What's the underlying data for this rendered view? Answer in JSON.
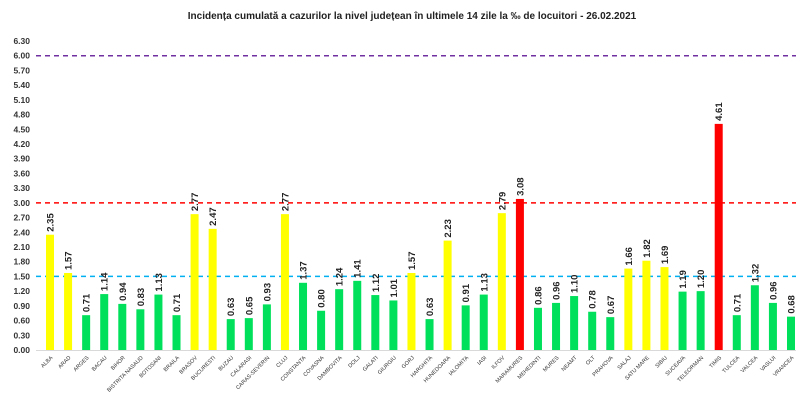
{
  "chart_data": {
    "type": "bar",
    "title": "Incidența cumulată a cazurilor la nivel județean în ultimele 14 zile   la ‰ de locuitori  - 26.02.2021",
    "xlabel": "",
    "ylabel": "",
    "ylim": [
      0,
      6.3
    ],
    "yticks": [
      "0.00",
      "0.30",
      "0.60",
      "0.90",
      "1.20",
      "1.50",
      "1.80",
      "2.10",
      "2.40",
      "2.70",
      "3.00",
      "3.30",
      "3.60",
      "3.90",
      "4.20",
      "4.50",
      "4.80",
      "5.10",
      "5.40",
      "5.70",
      "6.00",
      "6.30"
    ],
    "categories": [
      "ALBA",
      "ARAD",
      "ARGES",
      "BACAU",
      "BIHOR",
      "BISTRITA NASAUD",
      "BOTOSANI",
      "BRAILA",
      "BRASOV",
      "BUCURESTI",
      "BUZAU",
      "CALARASI",
      "CARAS-SEVERIN",
      "CLUJ",
      "CONSTANTA",
      "COVASNA",
      "DAMBOVITA",
      "DOLJ",
      "GALATI",
      "GIURGIU",
      "GORJ",
      "HARGHITA",
      "HUNEDOARA",
      "IALOMITA",
      "IASI",
      "ILFOV",
      "MARAMURES",
      "MEHEDINTI",
      "MURES",
      "NEAMT",
      "OLT",
      "PRAHOVA",
      "SALAJ",
      "SATU MARE",
      "SIBIU",
      "SUCEAVA",
      "TELEORMAN",
      "TIMIS",
      "TULCEA",
      "VALCEA",
      "VASLUI",
      "VRANCEA"
    ],
    "values": [
      2.35,
      1.57,
      0.71,
      1.14,
      0.94,
      0.83,
      1.13,
      0.71,
      2.77,
      2.47,
      0.63,
      0.65,
      0.93,
      2.77,
      1.37,
      0.8,
      1.24,
      1.41,
      1.12,
      1.01,
      1.57,
      0.63,
      2.23,
      0.91,
      1.13,
      2.79,
      3.08,
      0.86,
      0.96,
      1.1,
      0.78,
      0.67,
      1.66,
      1.82,
      1.69,
      1.19,
      1.2,
      4.61,
      0.71,
      1.32,
      0.96,
      0.68
    ],
    "thresholds": [
      {
        "value": 6.0,
        "color": "#7030a0"
      },
      {
        "value": 3.0,
        "color": "#ff0000"
      },
      {
        "value": 1.5,
        "color": "#00b0f0"
      }
    ],
    "colors": {
      "low": "#00e05a",
      "mid": "#ffff00",
      "high": "#ff0000"
    },
    "grid": false,
    "legend": "none"
  }
}
